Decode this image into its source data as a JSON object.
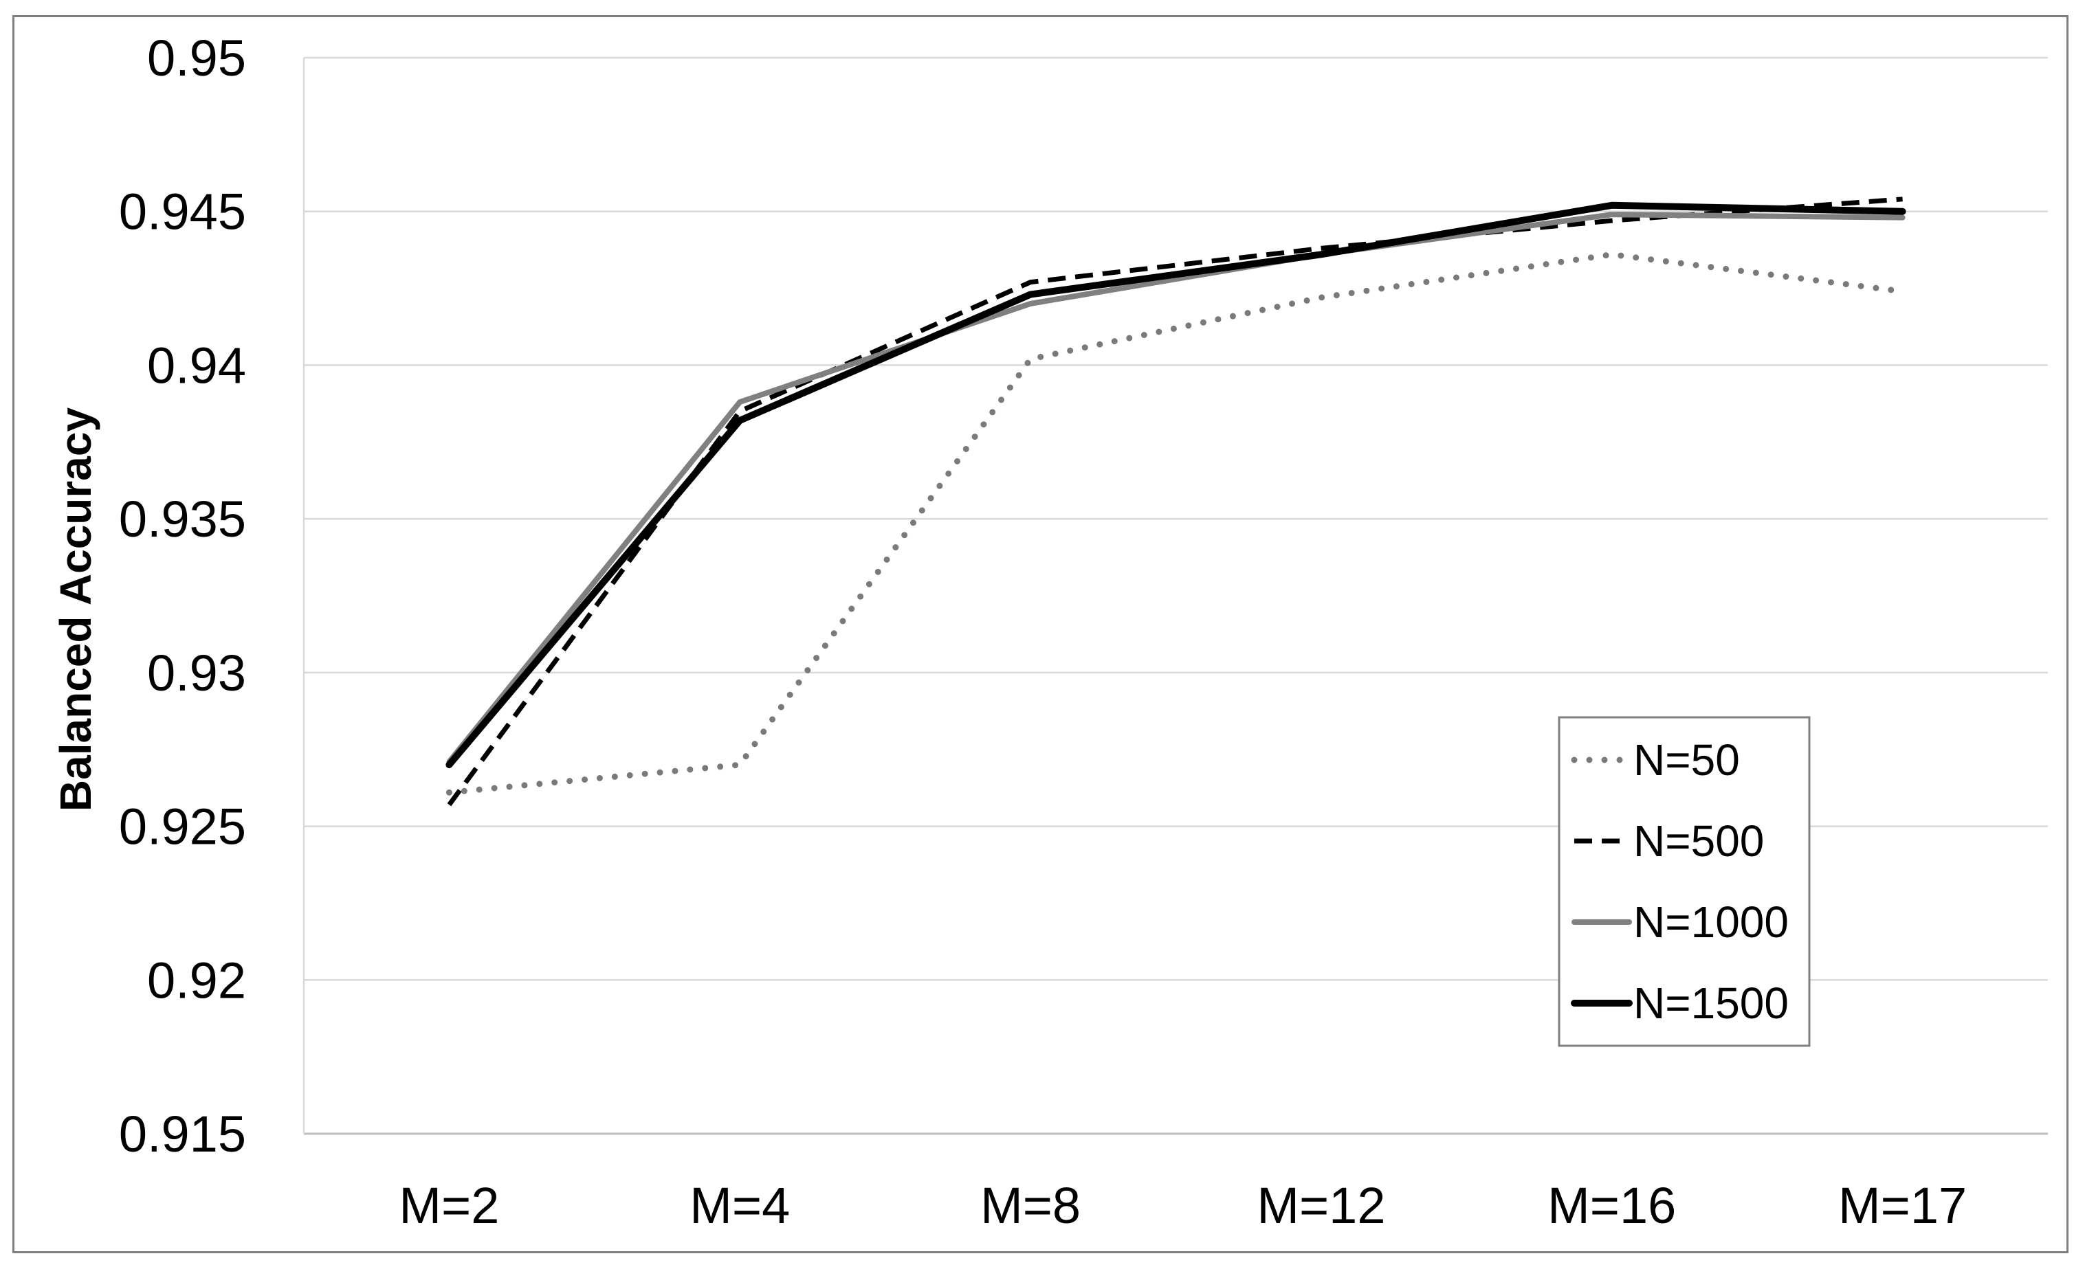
{
  "chart_data": {
    "type": "line",
    "title": "",
    "xlabel": "",
    "ylabel": "Balanced Accuracy",
    "categories": [
      "M=2",
      "M=4",
      "M=8",
      "M=12",
      "M=16",
      "M=17"
    ],
    "ylim": [
      0.915,
      0.95
    ],
    "yticks": [
      "0.95",
      "0.945",
      "0.94",
      "0.935",
      "0.93",
      "0.925",
      "0.92",
      "0.915"
    ],
    "grid": true,
    "legend_position": "lower-right",
    "series": [
      {
        "name": "N=50",
        "values": [
          0.9261,
          0.927,
          0.9402,
          0.9422,
          0.9436,
          0.9424
        ],
        "color": "#7a7a7a",
        "style": "dotted"
      },
      {
        "name": "N=500",
        "values": [
          0.9257,
          0.9385,
          0.9427,
          0.9438,
          0.9447,
          0.9454
        ],
        "color": "#000000",
        "style": "dashed"
      },
      {
        "name": "N=1000",
        "values": [
          0.9271,
          0.9388,
          0.942,
          0.9436,
          0.9449,
          0.9448
        ],
        "color": "#808080",
        "style": "solid"
      },
      {
        "name": "N=1500",
        "values": [
          0.927,
          0.9382,
          0.9423,
          0.9436,
          0.9452,
          0.945
        ],
        "color": "#000000",
        "style": "solid-bold"
      }
    ]
  }
}
